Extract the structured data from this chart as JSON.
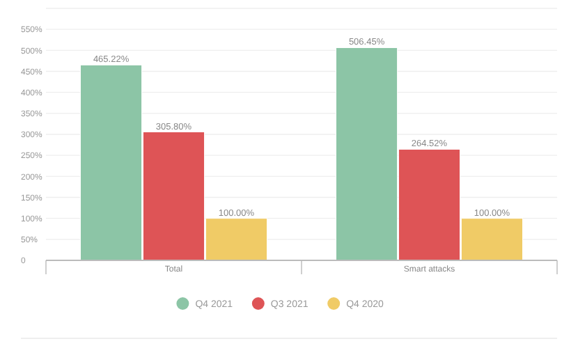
{
  "chart_data": {
    "type": "bar",
    "categories": [
      "Total",
      "Smart attacks"
    ],
    "series": [
      {
        "name": "Q4 2021",
        "color": "#8cc5a6",
        "values": [
          465.22,
          506.45
        ],
        "value_labels": [
          "465.22%",
          "506.45%"
        ]
      },
      {
        "name": "Q3 2021",
        "color": "#de5456",
        "values": [
          305.8,
          264.52
        ],
        "value_labels": [
          "305.80%",
          "264.52%"
        ]
      },
      {
        "name": "Q4 2020",
        "color": "#f0cb66",
        "values": [
          100,
          100
        ],
        "value_labels": [
          "100.00%",
          "100.00%"
        ]
      }
    ],
    "ylim": [
      0,
      600
    ],
    "yticks": [
      0,
      {
        "value": 50,
        "label": "50%"
      },
      {
        "value": 100,
        "label": "100%"
      },
      {
        "value": 150,
        "label": "150%"
      },
      {
        "value": 200,
        "label": "200%"
      },
      {
        "value": 250,
        "label": "250%"
      },
      {
        "value": 300,
        "label": "300%"
      },
      {
        "value": 350,
        "label": "350%"
      },
      {
        "value": 400,
        "label": "400%"
      },
      {
        "value": 450,
        "label": "450%"
      },
      {
        "value": 500,
        "label": "500%"
      },
      {
        "value": 550,
        "label": "550%"
      },
      {
        "value": 600,
        "label": null
      }
    ],
    "grid": "y",
    "legend": "bottom"
  }
}
